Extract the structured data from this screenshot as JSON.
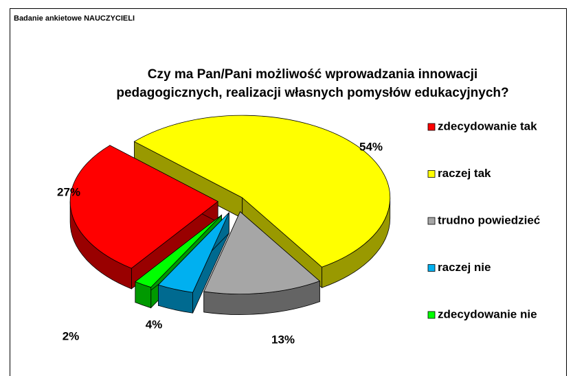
{
  "header": "Badanie ankietowe NAUCZYCIELI",
  "chart_data": {
    "type": "pie3d",
    "title": "Czy ma Pan/Pani możliwość wprowadzania innowacji pedagogicznych, realizacji własnych pomysłów edukacyjnych?",
    "categories": [
      "zdecydowanie tak",
      "raczej tak",
      "trudno powiedzieć",
      "raczej nie",
      "zdecydowanie nie"
    ],
    "values": [
      27,
      54,
      13,
      4,
      2
    ],
    "value_labels": [
      "27%",
      "54%",
      "13%",
      "4%",
      "2%"
    ],
    "colors": [
      "#ff0000",
      "#ffff00",
      "#a6a6a6",
      "#00b0f0",
      "#00ff00"
    ],
    "legend": "right"
  }
}
